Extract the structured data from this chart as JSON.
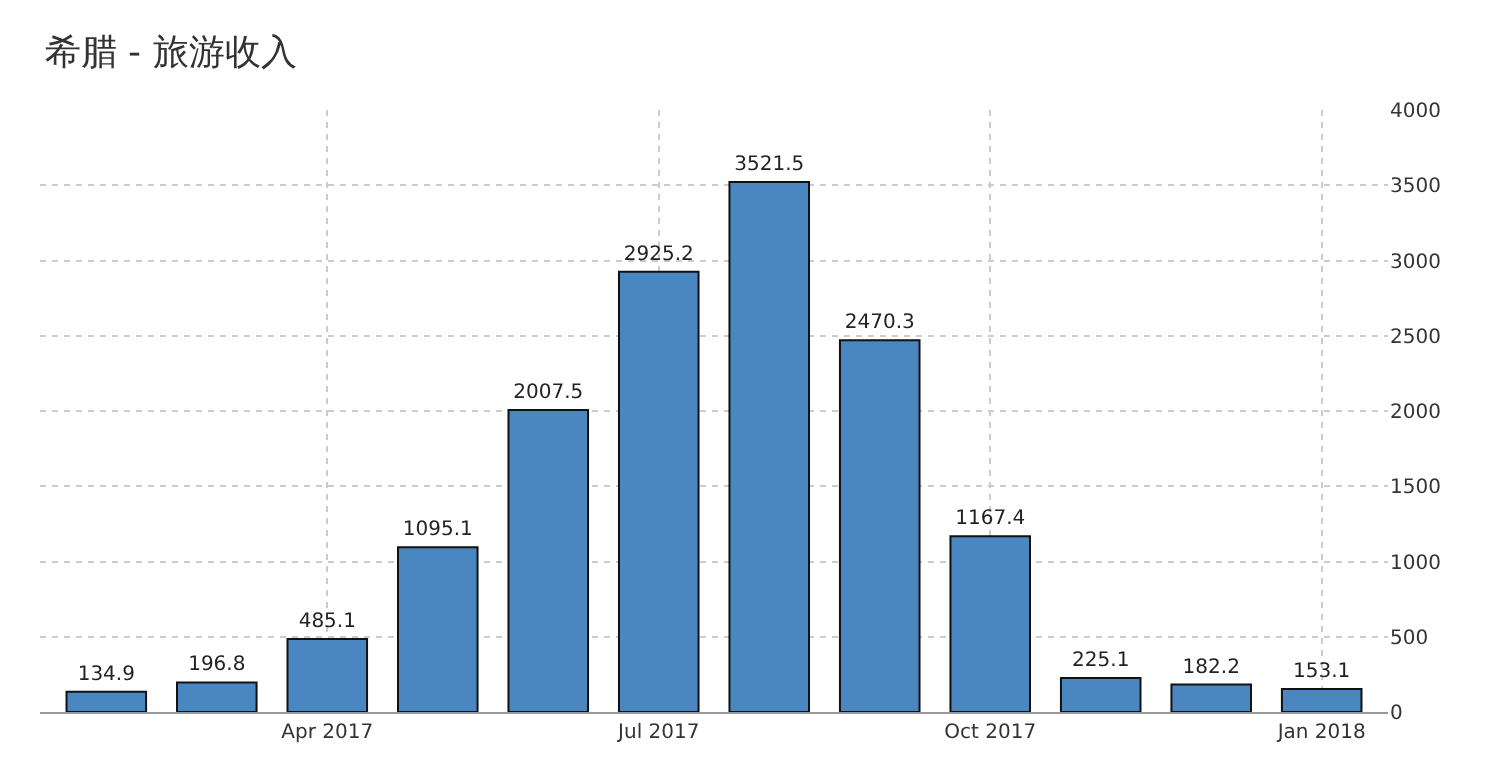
{
  "chart_data": {
    "type": "bar",
    "title": "希腊 - 旅游收入",
    "categories": [
      null,
      null,
      "Apr 2017",
      null,
      null,
      "Jul 2017",
      null,
      null,
      "Oct 2017",
      null,
      null,
      "Jan 2018"
    ],
    "values": [
      134.9,
      196.8,
      485.1,
      1095.1,
      2007.5,
      2925.2,
      3521.5,
      2470.3,
      1167.4,
      225.1,
      182.2,
      153.1
    ],
    "color": "#4a86c0",
    "ylim": [
      0,
      4000
    ],
    "yticks": [
      0,
      500,
      1000,
      1500,
      2000,
      2500,
      3000,
      3500,
      4000
    ],
    "grid": true,
    "data_labels": true,
    "legend": false
  }
}
